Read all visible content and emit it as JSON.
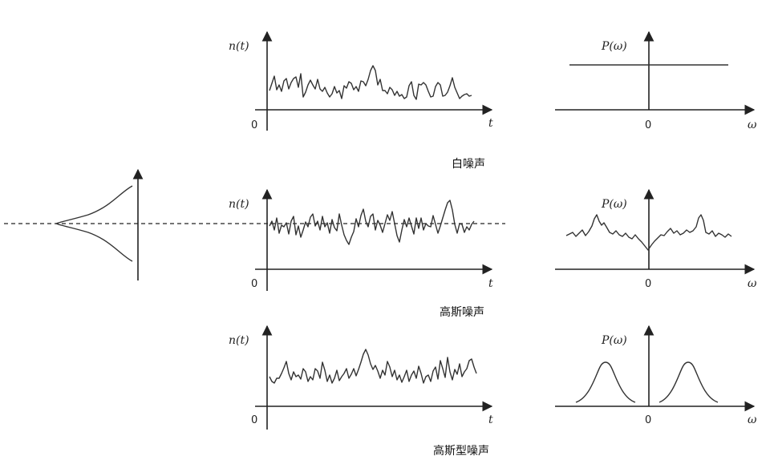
{
  "rows": [
    {
      "caption": "白噪声",
      "time_ylabel": "n(t)",
      "time_xlabel": "t",
      "time_origin": "0",
      "freq_ylabel": "P(ω)",
      "freq_xlabel": "ω",
      "freq_origin": "0"
    },
    {
      "caption": "高斯噪声",
      "time_ylabel": "n(t)",
      "time_xlabel": "t",
      "time_origin": "0",
      "freq_ylabel": "P(ω)",
      "freq_xlabel": "ω",
      "freq_origin": "0"
    },
    {
      "caption": "高斯型噪声",
      "time_ylabel": "n(t)",
      "time_xlabel": "t",
      "time_origin": "0",
      "freq_ylabel": "P(ω)",
      "freq_xlabel": "ω",
      "freq_origin": "0"
    }
  ]
}
